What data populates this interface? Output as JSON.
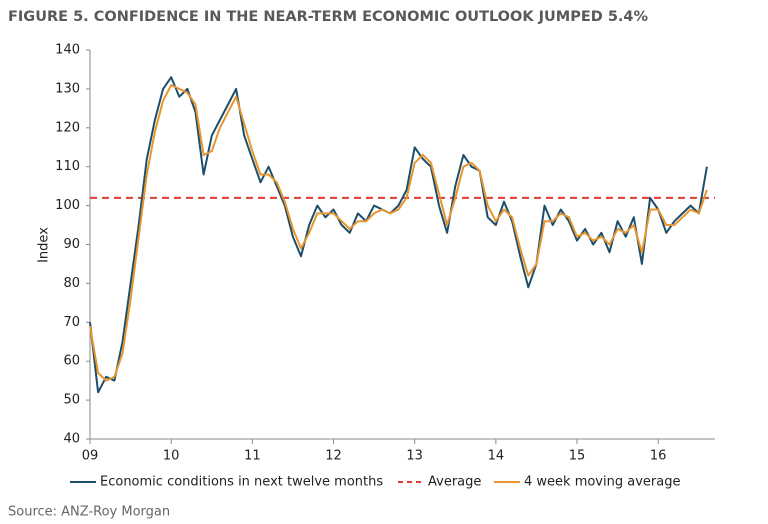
{
  "chart_data": {
    "type": "line",
    "title": "FIGURE 5. CONFIDENCE IN THE NEAR-TERM ECONOMIC OUTLOOK JUMPED 5.4%",
    "y_label": "Index",
    "source": "Source: ANZ-Roy Morgan",
    "x": [
      2009.0,
      2009.1,
      2009.2,
      2009.3,
      2009.4,
      2009.5,
      2009.6,
      2009.7,
      2009.8,
      2009.9,
      2010.0,
      2010.1,
      2010.2,
      2010.3,
      2010.4,
      2010.5,
      2010.6,
      2010.7,
      2010.8,
      2010.9,
      2011.0,
      2011.1,
      2011.2,
      2011.3,
      2011.4,
      2011.5,
      2011.6,
      2011.7,
      2011.8,
      2011.9,
      2012.0,
      2012.1,
      2012.2,
      2012.3,
      2012.4,
      2012.5,
      2012.6,
      2012.7,
      2012.8,
      2012.9,
      2013.0,
      2013.1,
      2013.2,
      2013.3,
      2013.4,
      2013.5,
      2013.6,
      2013.7,
      2013.8,
      2013.9,
      2014.0,
      2014.1,
      2014.2,
      2014.3,
      2014.4,
      2014.5,
      2014.6,
      2014.7,
      2014.8,
      2014.9,
      2015.0,
      2015.1,
      2015.2,
      2015.3,
      2015.4,
      2015.5,
      2015.6,
      2015.7,
      2015.8,
      2015.9,
      2016.0,
      2016.1,
      2016.2,
      2016.3,
      2016.4,
      2016.5,
      2016.6
    ],
    "series": [
      {
        "name": "Economic conditions in next twelve months",
        "color": "#1d4e6b",
        "values": [
          70,
          52,
          56,
          55,
          65,
          80,
          95,
          112,
          122,
          130,
          133,
          128,
          130,
          124,
          108,
          118,
          122,
          126,
          130,
          118,
          112,
          106,
          110,
          105,
          100,
          92,
          87,
          95,
          100,
          97,
          99,
          95,
          93,
          98,
          96,
          100,
          99,
          98,
          100,
          104,
          115,
          112,
          110,
          100,
          93,
          105,
          113,
          110,
          109,
          97,
          95,
          101,
          96,
          87,
          79,
          85,
          100,
          95,
          99,
          96,
          91,
          94,
          90,
          93,
          88,
          96,
          92,
          97,
          85,
          102,
          99,
          93,
          96,
          98,
          100,
          98,
          110
        ]
      },
      {
        "name": "4 week moving average",
        "color": "#e8952e",
        "values": [
          69,
          57,
          55,
          56,
          62,
          76,
          92,
          108,
          119,
          127,
          131,
          130,
          129,
          126,
          113,
          114,
          120,
          124,
          128,
          121,
          114,
          108,
          108,
          106,
          101,
          94,
          89,
          93,
          98,
          98,
          98,
          96,
          94,
          96,
          96,
          98,
          99,
          98,
          99,
          102,
          111,
          113,
          111,
          103,
          95,
          102,
          110,
          111,
          109,
          100,
          96,
          99,
          97,
          89,
          82,
          85,
          96,
          96,
          98,
          97,
          92,
          93,
          91,
          92,
          90,
          94,
          93,
          95,
          88,
          99,
          99,
          95,
          95,
          97,
          99,
          98,
          104
        ]
      }
    ],
    "reference_line": {
      "name": "Average",
      "value": 102,
      "color": "#e03c31",
      "dashed": true
    },
    "xlim": [
      2009,
      2016.7
    ],
    "xticks": [
      {
        "value": 2009,
        "label": "09"
      },
      {
        "value": 2010,
        "label": "10"
      },
      {
        "value": 2011,
        "label": "11"
      },
      {
        "value": 2012,
        "label": "12"
      },
      {
        "value": 2013,
        "label": "13"
      },
      {
        "value": 2014,
        "label": "14"
      },
      {
        "value": 2015,
        "label": "15"
      },
      {
        "value": 2016,
        "label": "16"
      }
    ],
    "ylim": [
      40,
      140
    ],
    "yticks": [
      40,
      50,
      60,
      70,
      80,
      90,
      100,
      110,
      120,
      130,
      140
    ],
    "grid": false
  }
}
